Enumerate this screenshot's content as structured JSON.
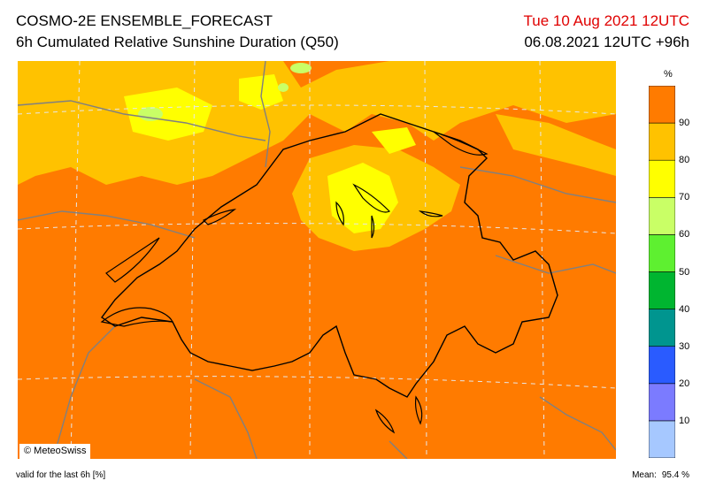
{
  "header": {
    "title": "COSMO-2E ENSEMBLE_FORECAST",
    "subtitle": "6h Cumulated Relative Sunshine Duration (Q50)",
    "valid_date": "Tue 10 Aug 2021 12UTC",
    "run_info": "06.08.2021 12UTC +96h"
  },
  "footer": {
    "credit": "© MeteoSwiss",
    "valid_note": "valid for the last 6h [%]",
    "mean_label": "Mean:",
    "mean_value": "95.4 %"
  },
  "legend": {
    "unit": "%",
    "ticks": [
      "90",
      "80",
      "70",
      "60",
      "50",
      "40",
      "30",
      "20",
      "10"
    ],
    "colors": [
      "#a6c8ff",
      "#7b7bff",
      "#2a5bff",
      "#00958f",
      "#00b530",
      "#5ef030",
      "#c9ff66",
      "#ffff00",
      "#ffc200",
      "#ff7b00"
    ]
  },
  "map_colors": {
    "dominant": "#ff7b00",
    "secondary": "#ffc200",
    "highlight": "#ffff00",
    "accent": "#c9ff66",
    "border": "#000000",
    "rivers": "#808080",
    "grid": "#dcdcdc"
  }
}
